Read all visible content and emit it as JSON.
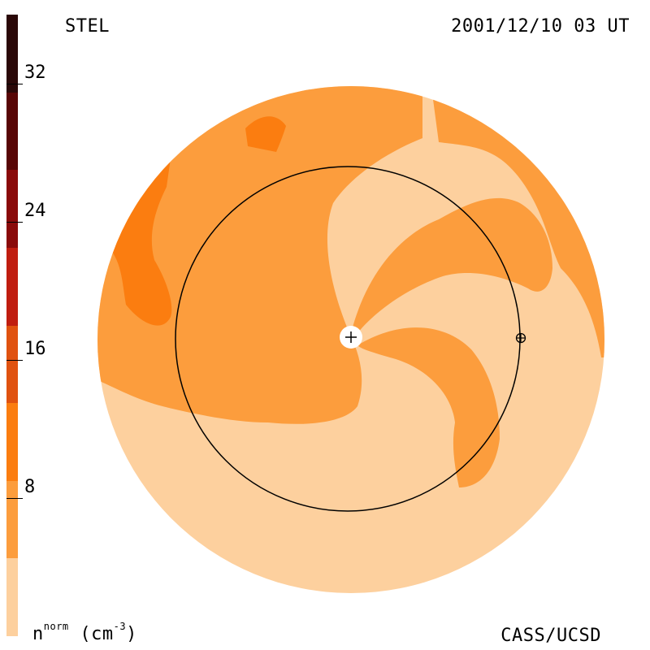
{
  "header": {
    "observatory": "STEL",
    "timestamp": "2001/12/10 03 UT"
  },
  "footer": {
    "credit": "CASS/UCSD",
    "unit_base": "n",
    "unit_sup": "norm",
    "unit_rest": "(cm",
    "unit_exp": "-3",
    "unit_close": ")"
  },
  "colorbar": {
    "range": [
      0,
      36
    ],
    "colors": [
      "#fdd09e",
      "#fc9d3d",
      "#fb7d10",
      "#e05210",
      "#c01d10",
      "#8a0a0a",
      "#580606",
      "#2a0808"
    ],
    "ticks": [
      {
        "value": 8,
        "label": "8"
      },
      {
        "value": 16,
        "label": "16"
      },
      {
        "value": 24,
        "label": "24"
      },
      {
        "value": 32,
        "label": "32"
      }
    ]
  },
  "map": {
    "level_colors": {
      "low": "#fdd09e",
      "mid": "#fc9d3d",
      "high": "#fb7d10"
    },
    "markers": {
      "sun": "+",
      "earth": "earth-symbol"
    }
  }
}
